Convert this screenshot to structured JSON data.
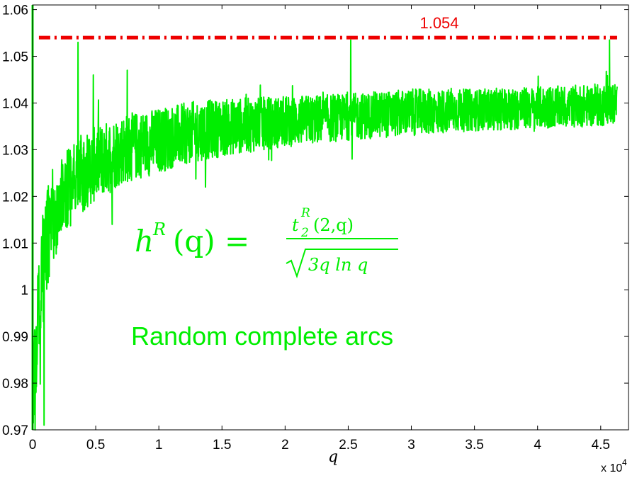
{
  "chart_data": {
    "type": "line",
    "xlabel": "q",
    "x_exponent_label": "x 10",
    "x_exponent_power": "4",
    "xlim": [
      0,
      4.72
    ],
    "ylim": [
      0.97,
      1.061
    ],
    "xticks": [
      "0",
      "0.5",
      "1",
      "1.5",
      "2",
      "2.5",
      "3",
      "3.5",
      "4",
      "4.5"
    ],
    "yticks": [
      "0.97",
      "0.98",
      "0.99",
      "1",
      "1.01",
      "1.02",
      "1.03",
      "1.04",
      "1.05",
      "1.06"
    ],
    "grid": false,
    "reference_line": {
      "y": 1.054,
      "label": "1.054",
      "color": "#ee0000",
      "style": "dash-dot"
    },
    "annotations": {
      "formula_lhs": "h",
      "formula_lhs_sup": "R",
      "formula_lhs_arg": "(q) =",
      "formula_num": "t",
      "formula_num_sup": "R",
      "formula_num_sub": "2",
      "formula_num_arg": "(2,q)",
      "formula_den": "3q ln q",
      "note": "Random complete arcs"
    },
    "series": [
      {
        "color": "#00ee00",
        "x": [
          0.0,
          0.02,
          0.05,
          0.08,
          0.12,
          0.18,
          0.25,
          0.35,
          0.5,
          0.7,
          1.0,
          1.3,
          1.6,
          2.0,
          2.5,
          3.0,
          3.5,
          4.0,
          4.5,
          4.63
        ],
        "trend": [
          0.975,
          0.985,
          0.995,
          1.004,
          1.011,
          1.016,
          1.02,
          1.024,
          1.027,
          1.03,
          1.032,
          1.034,
          1.035,
          1.036,
          1.037,
          1.038,
          1.0385,
          1.039,
          1.0395,
          1.04
        ],
        "band": [
          0.008,
          0.01,
          0.012,
          0.012,
          0.011,
          0.01,
          0.009,
          0.0085,
          0.008,
          0.0075,
          0.007,
          0.0065,
          0.006,
          0.0055,
          0.005,
          0.005,
          0.0045,
          0.0045,
          0.0045,
          0.0045
        ],
        "peaks": [
          [
            0.36,
            1.053
          ],
          [
            0.48,
            1.046
          ],
          [
            0.75,
            1.047
          ],
          [
            2.52,
            1.0535
          ],
          [
            4.57,
            1.0535
          ]
        ],
        "dips": [
          [
            0.09,
            0.971
          ],
          [
            0.02,
            0.97
          ],
          [
            1.37,
            1.022
          ],
          [
            2.53,
            1.028
          ],
          [
            0.63,
            1.014
          ]
        ]
      }
    ]
  }
}
